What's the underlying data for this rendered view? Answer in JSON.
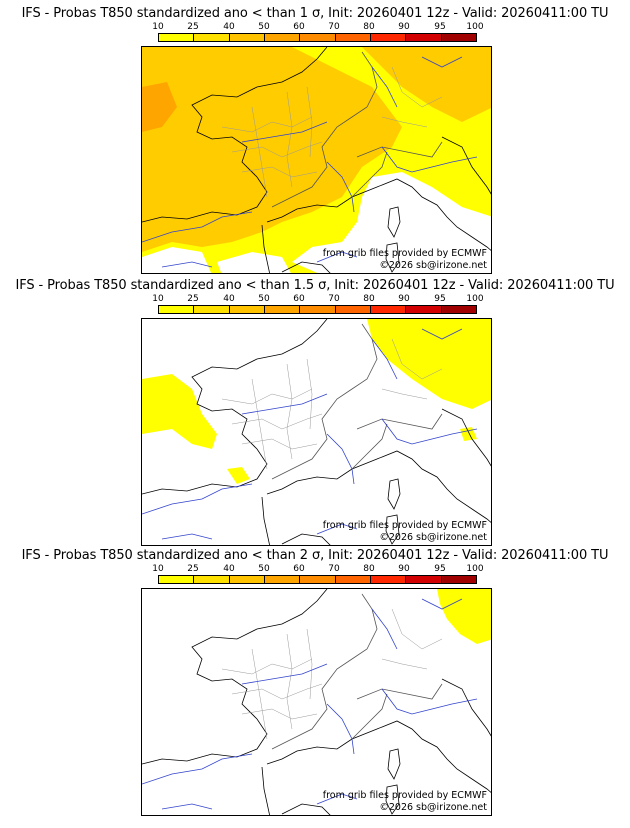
{
  "colorbar": {
    "labels": [
      "10",
      "25",
      "40",
      "50",
      "60",
      "70",
      "80",
      "90",
      "95",
      "100"
    ],
    "colors": [
      "#ffff00",
      "#ffe100",
      "#ffc300",
      "#ffa500",
      "#ff8c00",
      "#ff6400",
      "#ff2800",
      "#d20000",
      "#a00000",
      "#640000"
    ]
  },
  "credit_line1": "from grib files provided by ECMWF",
  "credit_line2": "©2026 sb@irizone.net",
  "panels": [
    {
      "title": "IFS - Probas T850  standardized ano < than 1 σ, Init: 20260401 12z - Valid: 20260411:00 TU"
    },
    {
      "title": "IFS - Probas T850  standardized ano < than 1.5 σ, Init: 20260401 12z - Valid: 20260411:00 TU"
    },
    {
      "title": "IFS - Probas T850  standardized ano < than 2 σ, Init: 20260401 12z - Valid: 20260411:00 TU"
    }
  ]
}
